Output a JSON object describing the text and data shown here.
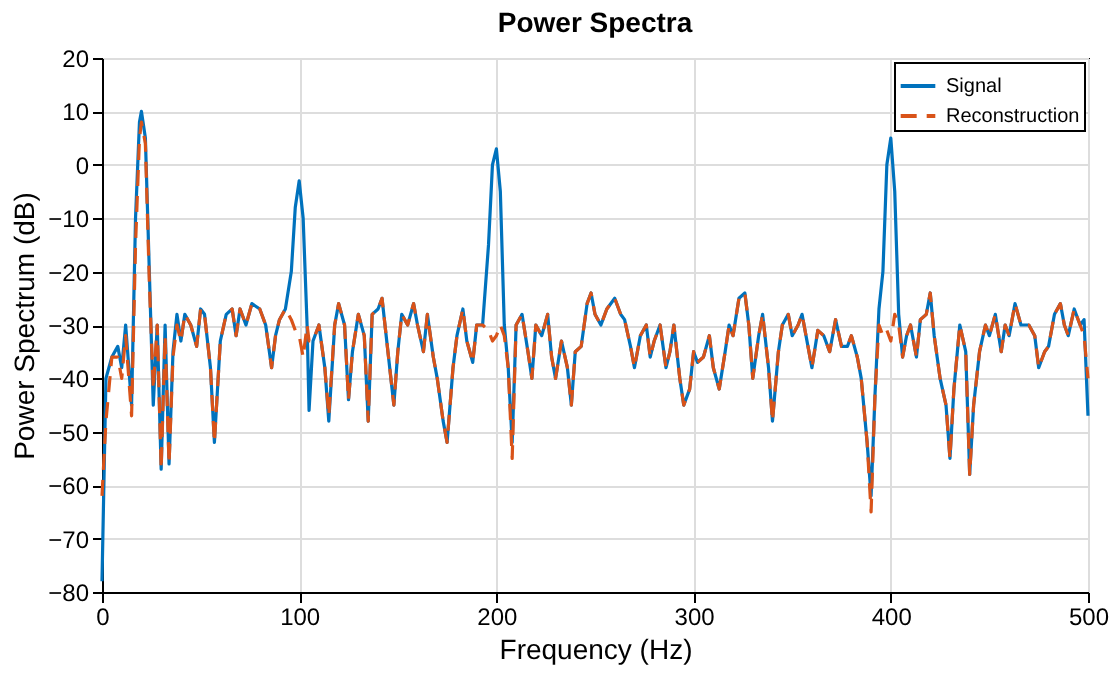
{
  "chart_data": {
    "type": "line",
    "title": "Power Spectra",
    "xlabel": "Frequency (Hz)",
    "ylabel": "Power Spectrum (dB)",
    "x": [
      0,
      2,
      5,
      8,
      10,
      12,
      15,
      17,
      19,
      20,
      22,
      24,
      26,
      28,
      30,
      32,
      34,
      36,
      38,
      40,
      42,
      45,
      48,
      50,
      52,
      55,
      57,
      60,
      63,
      66,
      68,
      70,
      73,
      76,
      80,
      83,
      86,
      88,
      90,
      93,
      96,
      98,
      100,
      102,
      104,
      105,
      107,
      110,
      113,
      115,
      118,
      120,
      123,
      125,
      127,
      130,
      133,
      135,
      137,
      140,
      142,
      145,
      148,
      150,
      152,
      155,
      158,
      160,
      163,
      165,
      168,
      170,
      173,
      175,
      178,
      180,
      183,
      185,
      188,
      190,
      193,
      196,
      198,
      200,
      202,
      204,
      206,
      208,
      210,
      213,
      216,
      218,
      220,
      223,
      226,
      228,
      230,
      233,
      236,
      238,
      240,
      243,
      246,
      248,
      250,
      253,
      256,
      260,
      263,
      265,
      268,
      270,
      273,
      276,
      278,
      280,
      283,
      286,
      288,
      290,
      293,
      295,
      298,
      300,
      302,
      305,
      308,
      310,
      313,
      316,
      318,
      320,
      323,
      326,
      328,
      330,
      333,
      335,
      338,
      340,
      343,
      345,
      348,
      350,
      353,
      355,
      358,
      360,
      363,
      366,
      369,
      372,
      375,
      378,
      380,
      383,
      385,
      388,
      390,
      392,
      394,
      396,
      398,
      400,
      402,
      404,
      406,
      408,
      410,
      413,
      415,
      418,
      420,
      422,
      425,
      428,
      430,
      432,
      435,
      438,
      440,
      442,
      445,
      448,
      450,
      453,
      456,
      458,
      460,
      463,
      466,
      470,
      473,
      475,
      478,
      480,
      483,
      486,
      488,
      490,
      493,
      496,
      498,
      500
    ],
    "series": [
      {
        "name": "Signal",
        "color": "#0072bd",
        "line_style": "solid",
        "values": [
          -78,
          -40,
          -36,
          -34,
          -38,
          -30,
          -45,
          -10,
          8,
          10,
          5,
          -20,
          -45,
          -30,
          -57,
          -30,
          -56,
          -35,
          -28,
          -33,
          -28,
          -30,
          -34,
          -27,
          -28,
          -38,
          -52,
          -33,
          -28,
          -27,
          -32,
          -27,
          -30,
          -26,
          -27,
          -30,
          -38,
          -32,
          -29,
          -27,
          -20,
          -8,
          -3,
          -10,
          -30,
          -46,
          -33,
          -30,
          -38,
          -48,
          -30,
          -26,
          -30,
          -44,
          -35,
          -28,
          -32,
          -48,
          -28,
          -27,
          -25,
          -35,
          -45,
          -35,
          -28,
          -30,
          -26,
          -30,
          -35,
          -28,
          -36,
          -40,
          -48,
          -52,
          -38,
          -32,
          -27,
          -33,
          -37,
          -30,
          -30,
          -15,
          0,
          3,
          -5,
          -30,
          -38,
          -52,
          -30,
          -28,
          -35,
          -40,
          -30,
          -32,
          -28,
          -36,
          -40,
          -33,
          -38,
          -45,
          -35,
          -34,
          -26,
          -24,
          -28,
          -30,
          -27,
          -25,
          -28,
          -29,
          -34,
          -38,
          -32,
          -30,
          -36,
          -33,
          -30,
          -38,
          -35,
          -30,
          -40,
          -45,
          -42,
          -35,
          -37,
          -36,
          -32,
          -38,
          -42,
          -35,
          -30,
          -32,
          -25,
          -24,
          -30,
          -40,
          -32,
          -28,
          -38,
          -48,
          -35,
          -30,
          -28,
          -32,
          -30,
          -28,
          -34,
          -38,
          -31,
          -32,
          -35,
          -29,
          -34,
          -34,
          -32,
          -36,
          -40,
          -52,
          -62,
          -43,
          -27,
          -20,
          0,
          5,
          -5,
          -28,
          -36,
          -32,
          -30,
          -36,
          -29,
          -28,
          -24,
          -32,
          -40,
          -45,
          -55,
          -42,
          -30,
          -35,
          -58,
          -45,
          -35,
          -30,
          -32,
          -28,
          -35,
          -30,
          -32,
          -26,
          -30,
          -30,
          -32,
          -38,
          -35,
          -34,
          -28,
          -26,
          -30,
          -32,
          -27,
          -30,
          -29,
          -47
        ]
      },
      {
        "name": "Reconstruction",
        "color": "#d95319",
        "line_style": "dashed",
        "values": [
          -62,
          -48,
          -36,
          -36,
          -40,
          -32,
          -47,
          -15,
          5,
          8,
          4,
          -22,
          -42,
          -30,
          -57,
          -32,
          -56,
          -36,
          -30,
          -33,
          -28,
          -30,
          -34,
          -27,
          -28,
          -38,
          -52,
          -33,
          -28,
          -27,
          -32,
          -27,
          -30,
          -26,
          -27,
          -30,
          -38,
          -32,
          -29,
          -27,
          -29,
          -31,
          -32,
          -36,
          -30,
          -33,
          -33,
          -30,
          -38,
          -47,
          -30,
          -26,
          -30,
          -44,
          -35,
          -28,
          -32,
          -48,
          -28,
          -27,
          -25,
          -35,
          -45,
          -35,
          -28,
          -30,
          -26,
          -30,
          -35,
          -28,
          -36,
          -40,
          -48,
          -52,
          -38,
          -32,
          -27,
          -33,
          -37,
          -30,
          -30,
          -31,
          -33,
          -32,
          -30,
          -32,
          -38,
          -55,
          -30,
          -28,
          -35,
          -40,
          -30,
          -32,
          -28,
          -36,
          -40,
          -33,
          -38,
          -45,
          -35,
          -34,
          -26,
          -24,
          -28,
          -30,
          -27,
          -25,
          -28,
          -29,
          -34,
          -38,
          -32,
          -30,
          -36,
          -33,
          -30,
          -38,
          -35,
          -30,
          -40,
          -45,
          -42,
          -35,
          -37,
          -36,
          -32,
          -38,
          -42,
          -35,
          -30,
          -32,
          -25,
          -24,
          -30,
          -40,
          -32,
          -28,
          -38,
          -48,
          -35,
          -30,
          -28,
          -32,
          -30,
          -28,
          -34,
          -38,
          -31,
          -32,
          -35,
          -29,
          -34,
          -34,
          -32,
          -36,
          -40,
          -52,
          -65,
          -43,
          -30,
          -32,
          -31,
          -33,
          -28,
          -30,
          -36,
          -32,
          -30,
          -36,
          -29,
          -28,
          -24,
          -32,
          -40,
          -45,
          -55,
          -42,
          -30,
          -35,
          -58,
          -45,
          -35,
          -30,
          -32,
          -28,
          -35,
          -30,
          -32,
          -26,
          -30,
          -30,
          -32,
          -38,
          -35,
          -34,
          -28,
          -26,
          -30,
          -32,
          -27,
          -30,
          -32,
          -40
        ]
      }
    ],
    "xlim": [
      0,
      500
    ],
    "xticks": [
      0,
      100,
      200,
      300,
      400,
      500
    ],
    "ylim": [
      -80,
      20
    ],
    "yticks": [
      -80,
      -70,
      -60,
      -50,
      -40,
      -30,
      -20,
      -10,
      0,
      10,
      20
    ],
    "grid": true,
    "legend": "top right"
  }
}
